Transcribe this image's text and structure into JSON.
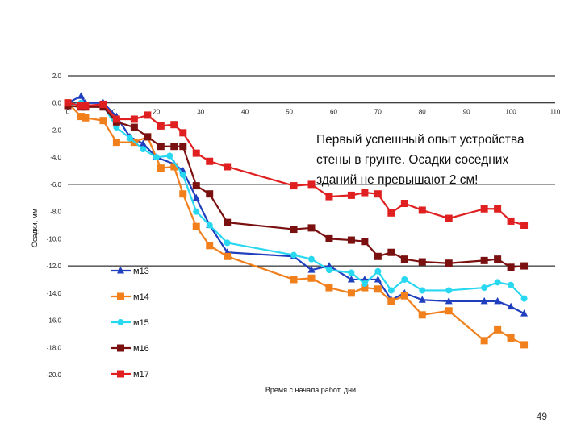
{
  "chart_data": {
    "type": "line",
    "title": "",
    "xlabel": "Время с начала работ, дни",
    "ylabel": "Осадки, мм",
    "xlim": [
      0,
      110
    ],
    "ylim": [
      -20,
      2
    ],
    "x_ticks": [
      0,
      10,
      20,
      30,
      40,
      50,
      60,
      70,
      80,
      90,
      100,
      110
    ],
    "x_tick_labels": [
      "0",
      "10",
      "20",
      "30",
      "40",
      "50",
      "60",
      "70",
      "80",
      "90",
      "100",
      "110"
    ],
    "y_ticks": [
      2,
      0,
      -2,
      -4,
      -6,
      -8,
      -10,
      -12,
      -14,
      -16,
      -18,
      -20
    ],
    "y_tick_labels": [
      "2.0",
      "0.0",
      "-2.0",
      "-4.0",
      "-6.0",
      "-8.0",
      "-10.0",
      "-12.0",
      "-14.0",
      "-16.0",
      "-18.0",
      "-20.0"
    ],
    "gridlines_y": [
      2,
      0,
      -6,
      -12
    ],
    "legend_position": "bottom-left",
    "series": [
      {
        "name": "м13",
        "color": "#1f3fbf",
        "marker": "triangle",
        "x": [
          0,
          3,
          4,
          8,
          11,
          14,
          17,
          20,
          24,
          26,
          29,
          32,
          36,
          51,
          55,
          59,
          64,
          67,
          70,
          73,
          76,
          80,
          86,
          94,
          97,
          100,
          103
        ],
        "y": [
          0.0,
          0.5,
          0.0,
          0.0,
          -1.0,
          -2.5,
          -3.0,
          -4.0,
          -4.5,
          -5.0,
          -7.0,
          -9.0,
          -11.0,
          -11.3,
          -12.3,
          -12.0,
          -13.0,
          -13.0,
          -13.0,
          -14.5,
          -14.0,
          -14.5,
          -14.6,
          -14.6,
          -14.6,
          -15.0,
          -15.5
        ]
      },
      {
        "name": "м14",
        "color": "#f07f1c",
        "marker": "square",
        "x": [
          0,
          3,
          4,
          8,
          11,
          15,
          18,
          21,
          24,
          26,
          29,
          32,
          36,
          51,
          55,
          59,
          64,
          67,
          70,
          73,
          76,
          80,
          86,
          94,
          97,
          100,
          103
        ],
        "y": [
          0.0,
          -1.0,
          -1.1,
          -1.3,
          -2.9,
          -2.9,
          -2.5,
          -4.8,
          -4.7,
          -6.7,
          -9.1,
          -10.5,
          -11.3,
          -13.0,
          -12.9,
          -13.6,
          -14.0,
          -13.6,
          -13.7,
          -14.6,
          -14.2,
          -15.6,
          -15.3,
          -17.5,
          -16.7,
          -17.3,
          -17.8
        ]
      },
      {
        "name": "м15",
        "color": "#27d8f0",
        "marker": "circle",
        "x": [
          0,
          3,
          4,
          8,
          11,
          14,
          17,
          20,
          23,
          26,
          29,
          32,
          36,
          51,
          55,
          59,
          64,
          67,
          70,
          73,
          76,
          80,
          86,
          94,
          97,
          100,
          103
        ],
        "y": [
          -0.2,
          0.0,
          -0.2,
          -0.2,
          -1.8,
          -2.6,
          -3.4,
          -4.0,
          -3.9,
          -5.3,
          -8.0,
          -9.0,
          -10.3,
          -11.2,
          -11.5,
          -12.3,
          -12.5,
          -13.3,
          -12.4,
          -13.8,
          -13.0,
          -13.8,
          -13.8,
          -13.6,
          -13.2,
          -13.4,
          -14.4
        ]
      },
      {
        "name": "м16",
        "color": "#7a1010",
        "marker": "square",
        "x": [
          0,
          3,
          4,
          8,
          11,
          15,
          18,
          21,
          24,
          26,
          29,
          32,
          36,
          51,
          55,
          59,
          64,
          67,
          70,
          73,
          76,
          80,
          86,
          94,
          97,
          100,
          103
        ],
        "y": [
          -0.2,
          -0.3,
          -0.3,
          -0.3,
          -1.4,
          -1.8,
          -2.5,
          -3.2,
          -3.2,
          -3.2,
          -6.1,
          -6.7,
          -8.8,
          -9.3,
          -9.2,
          -10.0,
          -10.1,
          -10.2,
          -11.3,
          -11.0,
          -11.5,
          -11.7,
          -11.8,
          -11.6,
          -11.5,
          -12.1,
          -12.0
        ]
      },
      {
        "name": "м17",
        "color": "#e02020",
        "marker": "square",
        "x": [
          0,
          3,
          4,
          8,
          11,
          15,
          18,
          21,
          24,
          26,
          29,
          32,
          36,
          51,
          55,
          59,
          64,
          67,
          70,
          73,
          76,
          80,
          86,
          94,
          97,
          100,
          103
        ],
        "y": [
          0.0,
          -0.2,
          -0.2,
          -0.1,
          -1.2,
          -1.2,
          -0.9,
          -1.7,
          -1.6,
          -2.2,
          -3.7,
          -4.3,
          -4.7,
          -6.1,
          -6.0,
          -6.9,
          -6.8,
          -6.6,
          -6.7,
          -8.1,
          -7.4,
          -7.9,
          -8.5,
          -7.8,
          -7.8,
          -8.7,
          -9.0
        ]
      }
    ],
    "annotation": [
      "Первый успешный опыт устройства",
      "стены в грунте. Осадки соседних",
      "зданий не превышают 2 см!"
    ]
  },
  "page_number": "49"
}
